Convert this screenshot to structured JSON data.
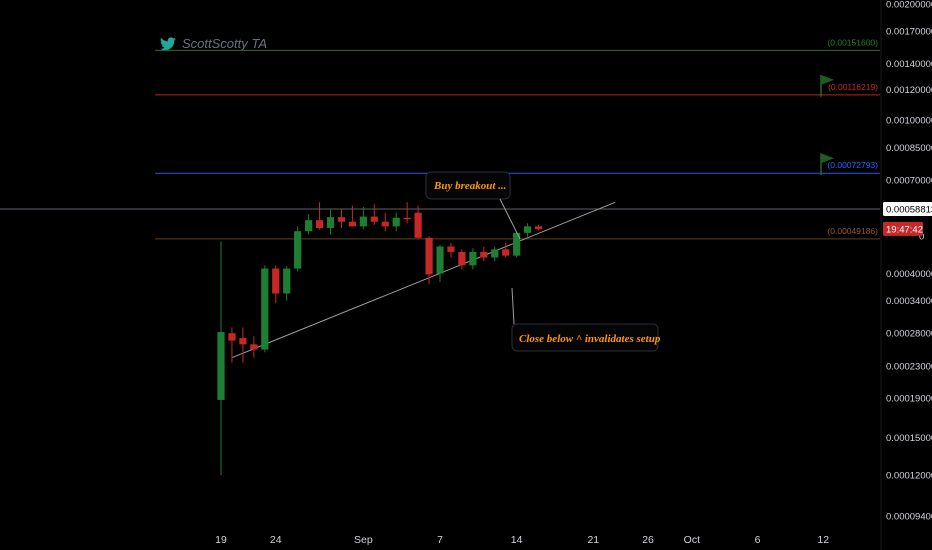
{
  "brand": {
    "name": "ScottScotty TA",
    "icon": "twitter-bird-icon",
    "color": "#26a69a"
  },
  "colors": {
    "up": "#1e7e34",
    "down": "#c62828",
    "text": "#d1d4dc",
    "note": "#ff9800"
  },
  "chart_data": {
    "type": "candlestick",
    "y_scale": "log",
    "ylim": [
      8.5e-05,
      0.0021
    ],
    "y_ticks": [
      "0.00200000",
      "0.00170000",
      "0.00140000",
      "0.00120000",
      "0.00100000",
      "0.00085000",
      "0.00070000",
      "0.00058813",
      "0.00050000",
      "0.00040000",
      "0.00034000",
      "0.00028000",
      "0.00023000",
      "0.00019000",
      "0.00015000",
      "0.00012000",
      "0.00009400"
    ],
    "x_ticks": [
      "19",
      "24",
      "Sep",
      "7",
      "14",
      "21",
      "26",
      "Oct",
      "6",
      "12"
    ],
    "candles": [
      {
        "date": "Aug 19",
        "o": 0.000188,
        "h": 0.000485,
        "l": 0.00012,
        "c": 0.000282
      },
      {
        "date": "Aug 20",
        "o": 0.00028,
        "h": 0.00029,
        "l": 0.000235,
        "c": 0.000268
      },
      {
        "date": "Aug 21",
        "o": 0.000272,
        "h": 0.00029,
        "l": 0.000235,
        "c": 0.000262
      },
      {
        "date": "Aug 22",
        "o": 0.000262,
        "h": 0.000275,
        "l": 0.000242,
        "c": 0.000254
      },
      {
        "date": "Aug 23",
        "o": 0.000254,
        "h": 0.00042,
        "l": 0.00025,
        "c": 0.000412
      },
      {
        "date": "Aug 24",
        "o": 0.000412,
        "h": 0.00042,
        "l": 0.000335,
        "c": 0.000355
      },
      {
        "date": "Aug 25",
        "o": 0.000355,
        "h": 0.000418,
        "l": 0.00034,
        "c": 0.000412
      },
      {
        "date": "Aug 26",
        "o": 0.000412,
        "h": 0.00053,
        "l": 0.000405,
        "c": 0.000515
      },
      {
        "date": "Aug 27",
        "o": 0.000515,
        "h": 0.00057,
        "l": 0.000505,
        "c": 0.00055
      },
      {
        "date": "Aug 28",
        "o": 0.00055,
        "h": 0.000612,
        "l": 0.00052,
        "c": 0.000525
      },
      {
        "date": "Aug 29",
        "o": 0.000525,
        "h": 0.000585,
        "l": 0.000505,
        "c": 0.00056
      },
      {
        "date": "Aug 30",
        "o": 0.00056,
        "h": 0.00059,
        "l": 0.000525,
        "c": 0.000545
      },
      {
        "date": "Aug 31",
        "o": 0.000545,
        "h": 0.0006,
        "l": 0.00053,
        "c": 0.00053
      },
      {
        "date": "Sep 1",
        "o": 0.00053,
        "h": 0.000595,
        "l": 0.00052,
        "c": 0.000562
      },
      {
        "date": "Sep 2",
        "o": 0.000562,
        "h": 0.000605,
        "l": 0.000535,
        "c": 0.000545
      },
      {
        "date": "Sep 3",
        "o": 0.000545,
        "h": 0.000575,
        "l": 0.000515,
        "c": 0.00053
      },
      {
        "date": "Sep 4",
        "o": 0.00053,
        "h": 0.000575,
        "l": 0.000515,
        "c": 0.000558
      },
      {
        "date": "Sep 5",
        "o": 0.000558,
        "h": 0.000612,
        "l": 0.00054,
        "c": 0.000555
      },
      {
        "date": "Sep 6",
        "o": 0.000575,
        "h": 0.0006,
        "l": 0.00049,
        "c": 0.000495
      },
      {
        "date": "Sep 7",
        "o": 0.000495,
        "h": 0.0005,
        "l": 0.000375,
        "c": 0.000398
      },
      {
        "date": "Sep 8",
        "o": 0.0004,
        "h": 0.000475,
        "l": 0.00038,
        "c": 0.00047
      },
      {
        "date": "Sep 9",
        "o": 0.00047,
        "h": 0.00048,
        "l": 0.00044,
        "c": 0.000455
      },
      {
        "date": "Sep 10",
        "o": 0.000455,
        "h": 0.000462,
        "l": 0.00041,
        "c": 0.00042
      },
      {
        "date": "Sep 11",
        "o": 0.00042,
        "h": 0.000465,
        "l": 0.00041,
        "c": 0.000455
      },
      {
        "date": "Sep 12",
        "o": 0.000455,
        "h": 0.00047,
        "l": 0.00043,
        "c": 0.00044
      },
      {
        "date": "Sep 13",
        "o": 0.00044,
        "h": 0.00047,
        "l": 0.00043,
        "c": 0.000462
      },
      {
        "date": "Sep 14",
        "o": 0.000462,
        "h": 0.00048,
        "l": 0.00044,
        "c": 0.000445
      },
      {
        "date": "Sep 15",
        "o": 0.000445,
        "h": 0.000515,
        "l": 0.00044,
        "c": 0.00051
      },
      {
        "date": "Sep 16",
        "o": 0.00051,
        "h": 0.00054,
        "l": 0.000498,
        "c": 0.00053
      },
      {
        "date": "Sep 17",
        "o": 0.00053,
        "h": 0.000535,
        "l": 0.000518,
        "c": 0.000522
      }
    ],
    "levels": [
      {
        "label": "(0.00151600)",
        "value": 0.001516,
        "color": "#2e7d32"
      },
      {
        "label": "(0.00116219)",
        "value": 0.00116219,
        "color": "#c62828"
      },
      {
        "label": "(0.00072793)",
        "value": 0.00072793,
        "color": "#2962ff"
      },
      {
        "label": "(0.00049186)",
        "value": 0.00049186,
        "color": "#8d5a2b"
      }
    ],
    "price_tags": [
      {
        "label": "0.00058813",
        "value": 0.00058813,
        "bg": "#ffffff",
        "fg": "#000000"
      },
      {
        "label": "19:47:42",
        "value": 0.000522,
        "bg": "#c62828",
        "fg": "#ffffff"
      }
    ],
    "trendline": {
      "from": {
        "date": "Aug 20",
        "value": 0.000242
      },
      "to": {
        "date": "Sep 23",
        "value": 0.000612
      }
    },
    "annotations": [
      {
        "text": "Buy breakout ...",
        "target": "resistance breakout"
      },
      {
        "text": "Close below ^ invalidates setup",
        "target": "trendline"
      }
    ]
  }
}
